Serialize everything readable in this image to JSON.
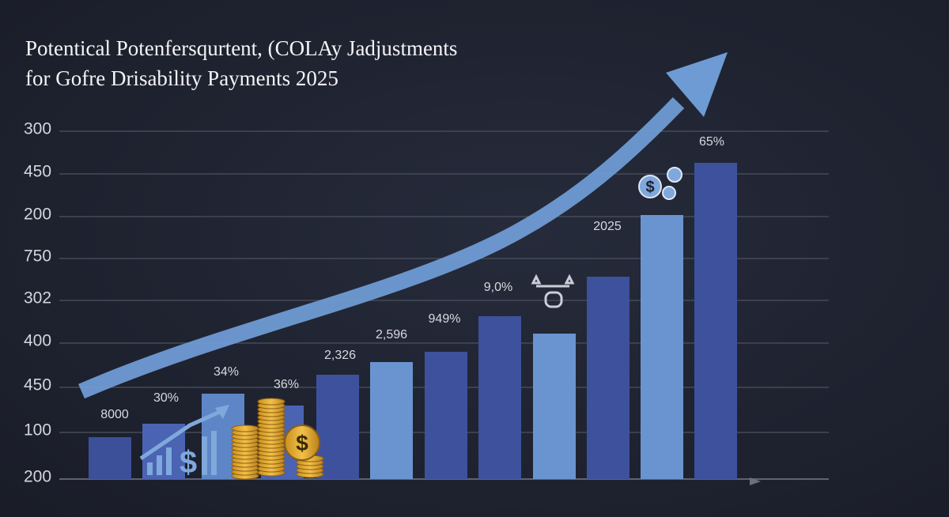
{
  "title_lines": [
    "Potentical Potenfersqurtent, (COLAy Jadjustments",
    "for Gofre Drisability Payments 2025"
  ],
  "y_axis_labels": [
    "300",
    "450",
    "200",
    "750",
    "302",
    "400",
    "450",
    "100",
    "200"
  ],
  "bar_labels": [
    "8000",
    "30%",
    "34%",
    "36%",
    "2,326",
    "2,596",
    "949%",
    "9,0%",
    "2025",
    "65%"
  ]
}
